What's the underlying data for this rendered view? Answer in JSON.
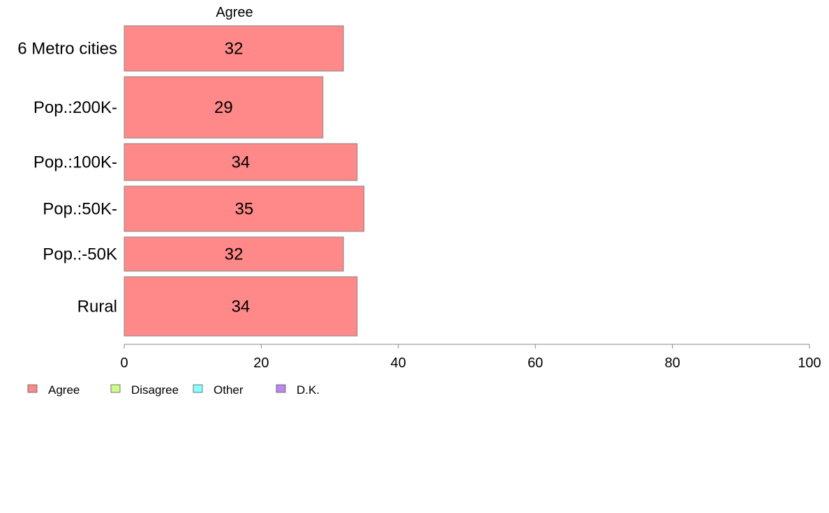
{
  "chart_data": {
    "type": "bar",
    "orientation": "horizontal",
    "series_title": "Agree",
    "categories": [
      "6 Metro cities",
      "Pop.:200K-",
      "Pop.:100K-",
      "Pop.:50K-",
      "Pop.:-50K",
      "Rural"
    ],
    "series": [
      {
        "name": "Agree",
        "values": [
          32,
          29,
          34,
          35,
          32,
          34
        ]
      }
    ],
    "xlim": [
      0,
      100
    ],
    "xticks": [
      0,
      20,
      40,
      60,
      80,
      100
    ],
    "grid": false,
    "legend": {
      "placement": "bottom-left",
      "items": [
        {
          "label": "Agree",
          "color": "#ff8888"
        },
        {
          "label": "Disagree",
          "color": "#ccff88"
        },
        {
          "label": "Other",
          "color": "#88ffff"
        },
        {
          "label": "D.K.",
          "color": "#bb88ee"
        }
      ]
    },
    "colors": {
      "bar": "#ff8888",
      "bar_border": "#888888",
      "axis": "#888888"
    }
  }
}
